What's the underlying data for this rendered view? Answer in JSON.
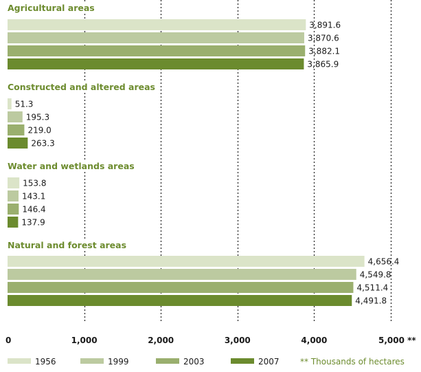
{
  "chart_data": {
    "type": "bar",
    "orientation": "horizontal",
    "groups": [
      {
        "name": "Agricultural areas",
        "values": [
          3891.6,
          3870.6,
          3882.1,
          3865.9
        ],
        "labels": [
          "3,891.6",
          "3,870.6",
          "3,882.1",
          "3,865.9"
        ]
      },
      {
        "name": "Constructed and altered areas",
        "values": [
          51.3,
          195.3,
          219.0,
          263.3
        ],
        "labels": [
          "51.3",
          "195.3",
          "219.0",
          "263.3"
        ]
      },
      {
        "name": "Water and wetlands areas",
        "values": [
          153.8,
          143.1,
          146.4,
          137.9
        ],
        "labels": [
          "153.8",
          "143.1",
          "146.4",
          "137.9"
        ]
      },
      {
        "name": "Natural and forest areas",
        "values": [
          4656.4,
          4549.8,
          4511.4,
          4491.8
        ],
        "labels": [
          "4,656.4",
          "4,549.8",
          "4,511.4",
          "4,491.8"
        ]
      }
    ],
    "series": [
      {
        "name": "1956",
        "color": "#dbe4c8"
      },
      {
        "name": "1999",
        "color": "#bccaa0"
      },
      {
        "name": "2003",
        "color": "#9aaf6e"
      },
      {
        "name": "2007",
        "color": "#6b8b2e"
      }
    ],
    "xlim": [
      0,
      5000
    ],
    "x_ticks": [
      0,
      1000,
      2000,
      3000,
      4000,
      5000
    ],
    "x_tick_labels": [
      "0",
      "1,000",
      "2,000",
      "3,000",
      "4,000",
      "5,000 **"
    ],
    "grid": "vertical dotted",
    "legend_placement": "bottom",
    "unit_note": "** Thousands of hectares",
    "title_color": "#6d8c2f"
  }
}
